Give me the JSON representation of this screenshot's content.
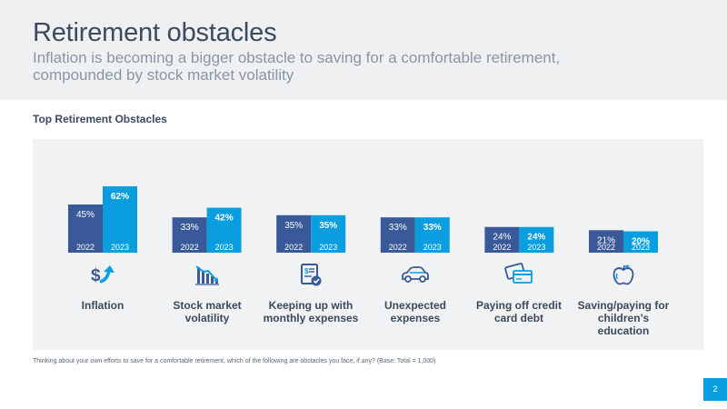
{
  "header": {
    "title": "Retirement obstacles",
    "subtitle": "Inflation is becoming a bigger obstacle to saving for a comfortable retirement, compounded by stock market volatility"
  },
  "section_title": "Top Retirement Obstacles",
  "footnote": "Thinking about your own efforts to save for a comfortable retirement, which of the following are obstacles you face, if any? (Base: Total = 1,000)",
  "page_number": "2",
  "colors": {
    "bar_2022": "#3a5998",
    "bar_2023": "#0a9ee0",
    "icon": "#3a5998",
    "icon_accent": "#0a9ee0",
    "text": "#3b4a5c"
  },
  "categories": [
    {
      "label": "Inflation",
      "icon": "dollar-up-arrow-icon"
    },
    {
      "label": "Stock market volatility",
      "icon": "declining-bar-chart-icon"
    },
    {
      "label": "Keeping up with monthly expenses",
      "icon": "bill-checkmark-icon"
    },
    {
      "label": "Unexpected expenses",
      "icon": "car-icon"
    },
    {
      "label": "Paying off credit card debt",
      "icon": "credit-cards-icon"
    },
    {
      "label": "Saving/paying for children’s education",
      "icon": "apple-icon"
    }
  ],
  "chart_data": {
    "type": "bar",
    "title": "Top Retirement Obstacles",
    "categories": [
      "Inflation",
      "Stock market volatility",
      "Keeping up with monthly expenses",
      "Unexpected expenses",
      "Paying off credit card debt",
      "Saving/paying for children’s education"
    ],
    "series": [
      {
        "name": "2022",
        "values": [
          45,
          33,
          35,
          33,
          24,
          21
        ],
        "labels": [
          "45%",
          "33%",
          "35%",
          "33%",
          "24%",
          "21%"
        ]
      },
      {
        "name": "2023",
        "values": [
          62,
          42,
          35,
          33,
          24,
          20
        ],
        "labels": [
          "62%",
          "42%",
          "35%",
          "33%",
          "24%",
          "20%"
        ]
      }
    ],
    "unit": "%",
    "ylim": [
      0,
      65
    ],
    "grid": false,
    "legend": "none (years printed inside bars)"
  }
}
